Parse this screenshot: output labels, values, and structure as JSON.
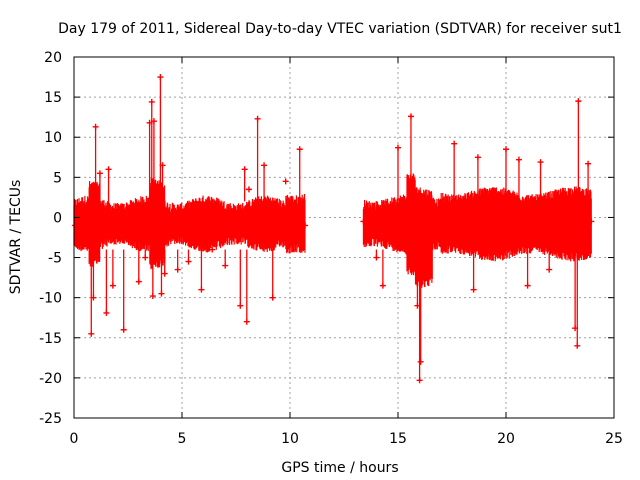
{
  "chart_data": {
    "type": "scatter",
    "title": "Day 179 of 2011, Sidereal Day-to-day VTEC variation (SDTVAR) for receiver sut1",
    "xlabel": "GPS time / hours",
    "ylabel": "SDTVAR / TECUs",
    "xlim": [
      0,
      25
    ],
    "ylim": [
      -25,
      20
    ],
    "xticks": [
      0,
      5,
      10,
      15,
      20,
      25
    ],
    "yticks": [
      20,
      15,
      10,
      5,
      0,
      -5,
      -10,
      -15,
      -20,
      -25
    ],
    "grid": true,
    "series": [
      {
        "name": "SDTVAR",
        "color": "#ff0000",
        "marker": "plus",
        "x": [
          0.05,
          0.4,
          0.8,
          0.9,
          1.0,
          1.2,
          1.5,
          1.6,
          1.8,
          2.0,
          2.3,
          2.6,
          3.0,
          3.3,
          3.5,
          3.6,
          3.65,
          3.7,
          3.8,
          4.0,
          4.05,
          4.1,
          4.2,
          4.5,
          4.8,
          5.0,
          5.3,
          5.6,
          5.9,
          6.1,
          6.4,
          6.7,
          7.0,
          7.4,
          7.7,
          7.9,
          8.0,
          8.1,
          8.3,
          8.5,
          8.8,
          9.2,
          9.5,
          9.8,
          10.1,
          10.3,
          10.45,
          10.55,
          10.7,
          13.4,
          13.7,
          14.0,
          14.3,
          14.6,
          15.0,
          15.1,
          15.3,
          15.6,
          15.9,
          16.0,
          16.05,
          16.1,
          16.5,
          17.0,
          17.3,
          17.6,
          18.0,
          18.5,
          18.7,
          19.0,
          19.3,
          19.7,
          20.0,
          20.3,
          20.6,
          21.0,
          21.3,
          21.6,
          22.0,
          22.3,
          22.6,
          23.0,
          23.2,
          23.3,
          23.35,
          23.5,
          23.8,
          23.95
        ],
        "y": [
          -1,
          -0.5,
          -14.5,
          -10,
          11.3,
          5.5,
          -11.9,
          6,
          -8.5,
          -1.5,
          -14,
          -0.5,
          -8,
          -5,
          11.8,
          14.4,
          -9.8,
          12,
          -2,
          17.5,
          -9.5,
          6.5,
          -7,
          -0.8,
          -6.5,
          -1,
          -5.5,
          -0.5,
          -9,
          -1.5,
          -4,
          -0.5,
          -6,
          -2,
          -11,
          6,
          -13,
          3.5,
          -1,
          12.3,
          6.5,
          -10,
          -0.5,
          4.5,
          -1.5,
          -3,
          8.5,
          -4,
          -1,
          -0.5,
          -1,
          -5,
          -8.5,
          -2.5,
          8.7,
          -1,
          -3.5,
          12.6,
          -11,
          -20.3,
          -18,
          -3,
          -1,
          -1.5,
          -0.5,
          9.2,
          -1,
          -9,
          7.5,
          -1,
          -0.5,
          -1,
          8.5,
          -1.5,
          7.2,
          -8.5,
          -0.5,
          6.9,
          -6.5,
          -1,
          -0.5,
          -1,
          -13.8,
          -16,
          14.5,
          -3,
          6.7,
          -0.5
        ]
      }
    ]
  }
}
